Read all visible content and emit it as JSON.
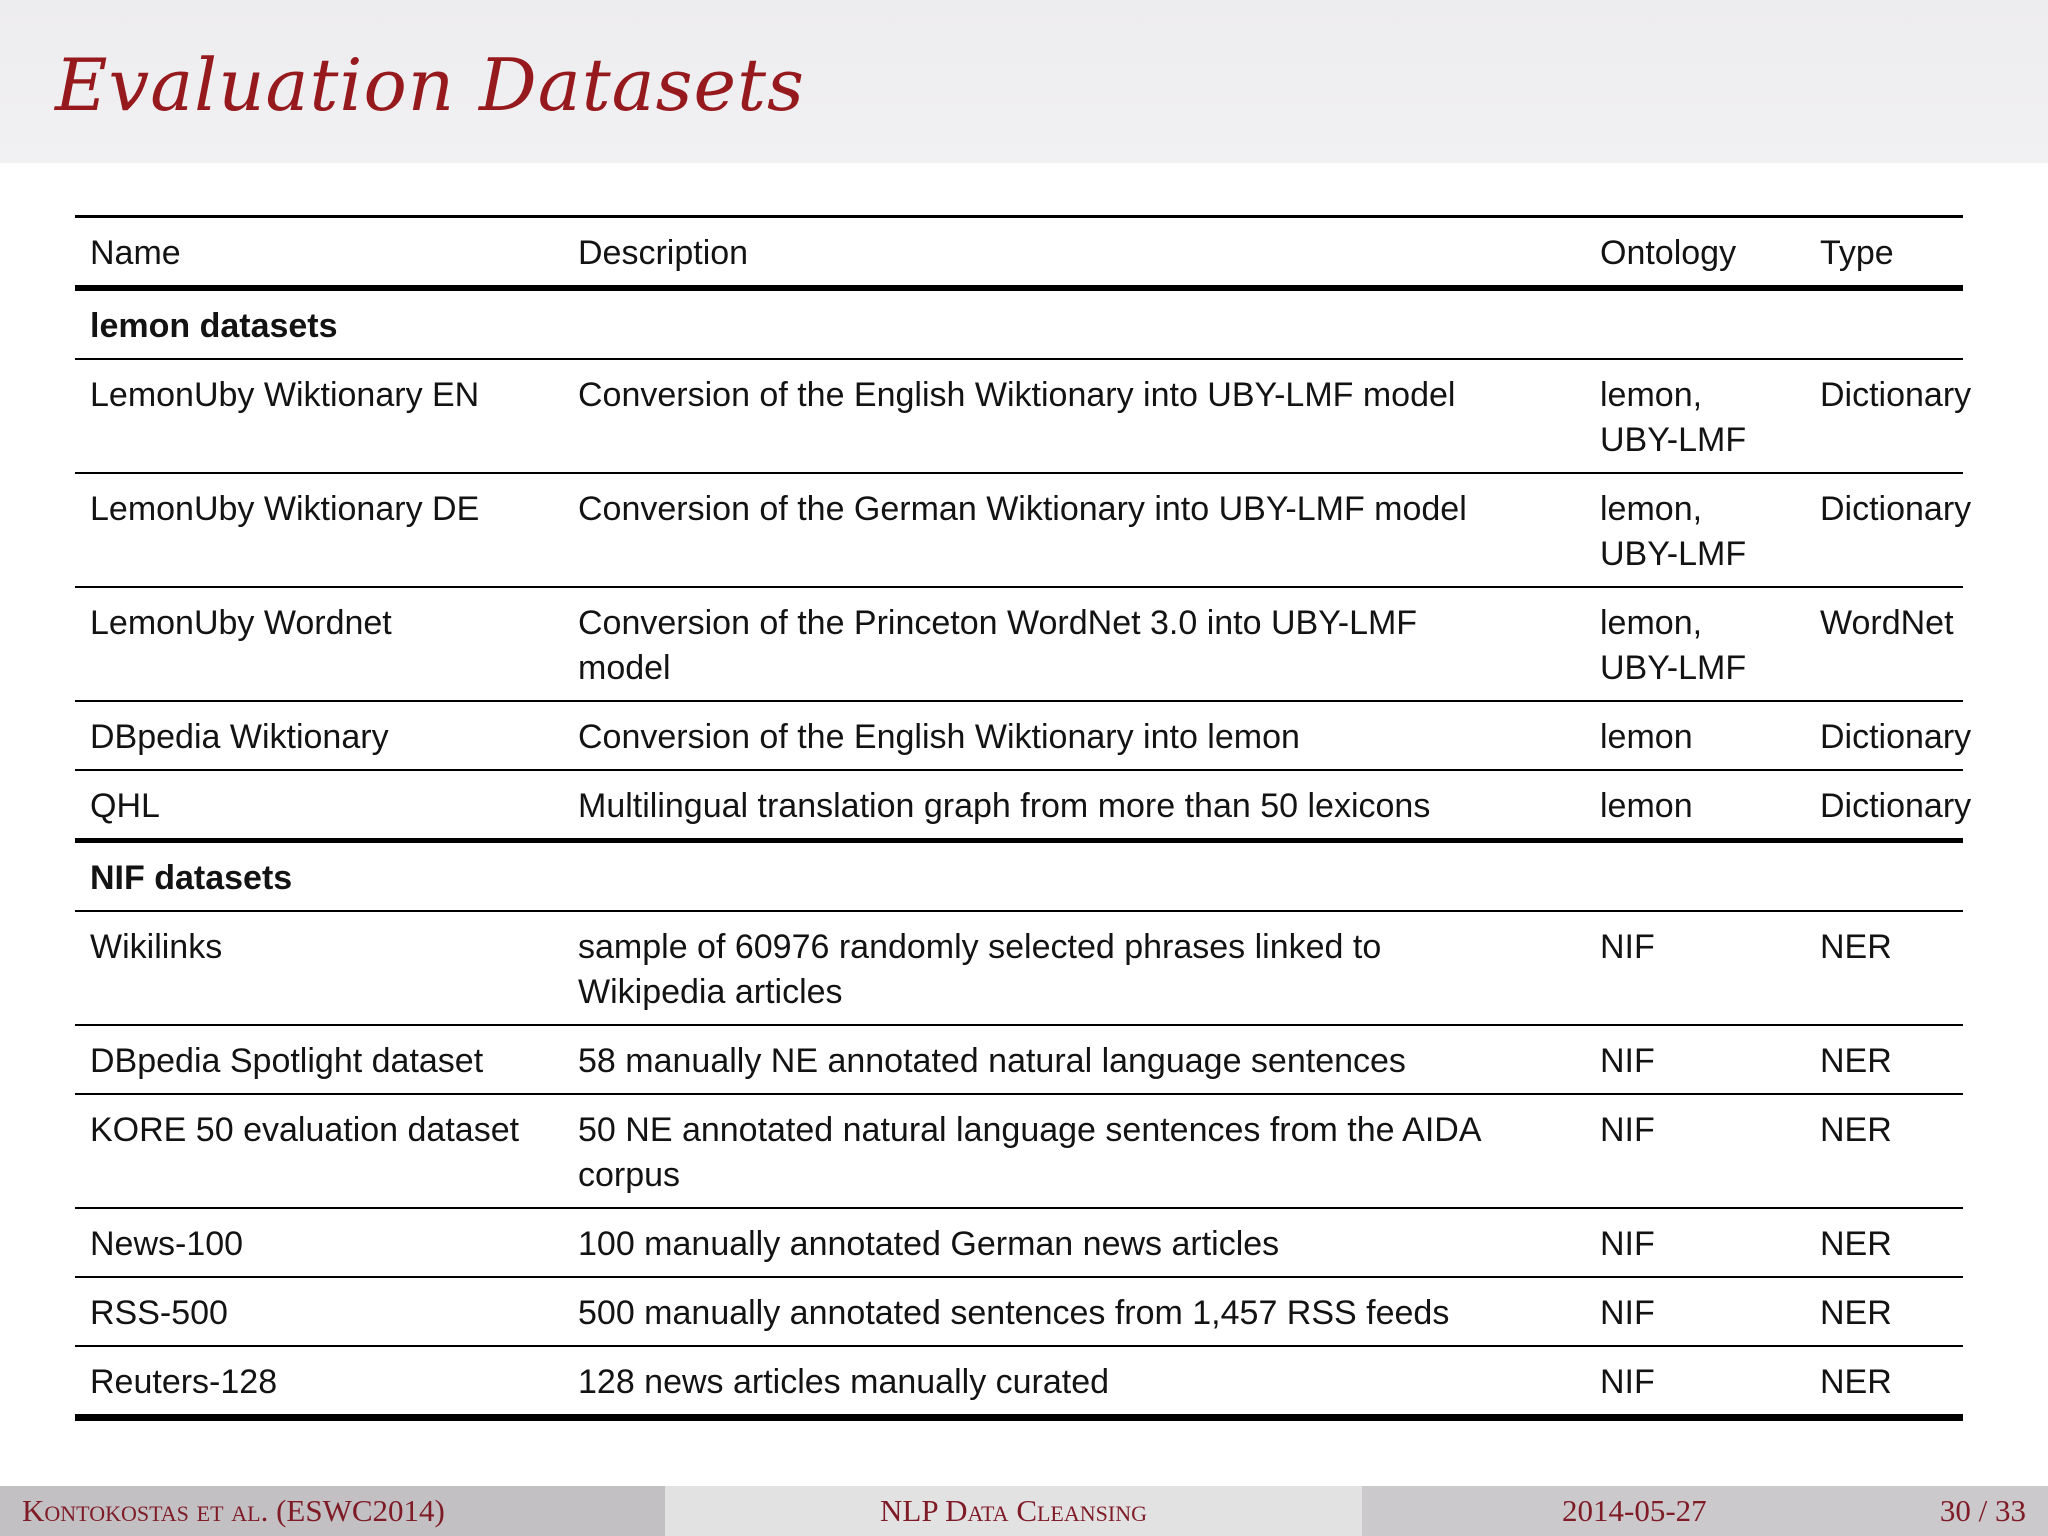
{
  "title": {
    "text": "Evaluation Datasets"
  },
  "colors": {
    "accent_maroon": "#96191d",
    "footer_text": "#7e1b26",
    "title_band_bg": "#efeef0",
    "footer_left_bg": "#c2c0c2",
    "footer_mid_bg": "#e3e2e3",
    "footer_right_bg": "#cbc9cb",
    "rule_color": "#000000"
  },
  "table": {
    "headers": [
      "Name",
      "Description",
      "Ontology",
      "Type"
    ],
    "sections": [
      {
        "label": "lemon datasets",
        "rows": [
          {
            "name": "LemonUby Wiktionary EN",
            "description": "Conversion of the English Wiktionary into UBY-LMF model",
            "ontology": "lemon, UBY-LMF",
            "type": "Dictionary"
          },
          {
            "name": "LemonUby Wiktionary DE",
            "description": "Conversion of the German Wiktionary into UBY-LMF model",
            "ontology": "lemon, UBY-LMF",
            "type": "Dictionary"
          },
          {
            "name": "LemonUby Wordnet",
            "description": "Conversion of the Princeton WordNet 3.0 into UBY-LMF model",
            "ontology": "lemon, UBY-LMF",
            "type": "WordNet"
          },
          {
            "name": "DBpedia Wiktionary",
            "description": "Conversion of the English Wiktionary into lemon",
            "ontology": "lemon",
            "type": "Dictionary"
          },
          {
            "name": "QHL",
            "description": "Multilingual translation graph from more than 50 lexicons",
            "ontology": "lemon",
            "type": "Dictionary"
          }
        ]
      },
      {
        "label": "NIF datasets",
        "rows": [
          {
            "name": "Wikilinks",
            "description": "sample of 60976 randomly selected phrases linked to Wikipedia articles",
            "ontology": "NIF",
            "type": "NER"
          },
          {
            "name": "DBpedia Spotlight dataset",
            "description": "58 manually NE annotated natural language sentences",
            "ontology": "NIF",
            "type": "NER"
          },
          {
            "name": "KORE 50 evaluation dataset",
            "description": "50 NE annotated natural language sentences from the AIDA corpus",
            "ontology": "NIF",
            "type": "NER"
          },
          {
            "name": "News-100",
            "description": "100 manually annotated German news articles",
            "ontology": "NIF",
            "type": "NER"
          },
          {
            "name": "RSS-500",
            "description": "500 manually annotated sentences from 1,457 RSS feeds",
            "ontology": "NIF",
            "type": "NER"
          },
          {
            "name": "Reuters-128",
            "description": "128 news articles manually curated",
            "ontology": "NIF",
            "type": "NER"
          }
        ]
      }
    ]
  },
  "footer": {
    "authors": "Kontokostas et al. (ESWC2014)",
    "talk_title": "NLP Data Cleansing",
    "date": "2014-05-27",
    "page": "30 / 33"
  }
}
